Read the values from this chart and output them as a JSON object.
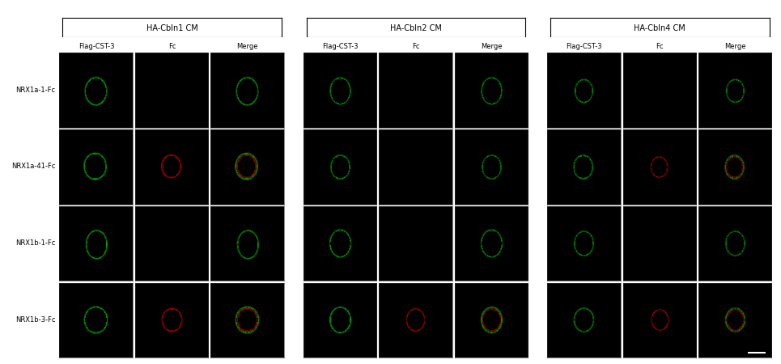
{
  "figure_width": 9.65,
  "figure_height": 4.5,
  "dpi": 100,
  "bg_color": "#ffffff",
  "panel_bg": "#000000",
  "group_titles": [
    "HA-Cbln1 CM",
    "HA-Cbln2 CM",
    "HA-Cbln4 CM"
  ],
  "sub_col_labels": [
    "Flag-CST-3",
    "Fc",
    "Merge"
  ],
  "row_labels": [
    "NRX1a-1-Fc",
    "NRX1a-41-Fc",
    "NRX1b-1-Fc",
    "NRX1b-3-Fc"
  ],
  "n_groups": 3,
  "n_subcols": 3,
  "n_rows": 4,
  "panel_info": {
    "0_0": {
      "green": true,
      "red": false
    },
    "0_1": {
      "green": true,
      "red": true
    },
    "0_2": {
      "green": true,
      "red": false
    },
    "0_3": {
      "green": true,
      "red": true
    },
    "1_0": {
      "green": true,
      "red": false
    },
    "1_1": {
      "green": true,
      "red": false
    },
    "1_2": {
      "green": true,
      "red": false
    },
    "1_3": {
      "green": true,
      "red": true
    },
    "2_0": {
      "green": true,
      "red": false
    },
    "2_1": {
      "green": true,
      "red": true
    },
    "2_2": {
      "green": true,
      "red": false
    },
    "2_3": {
      "green": true,
      "red": true
    }
  }
}
